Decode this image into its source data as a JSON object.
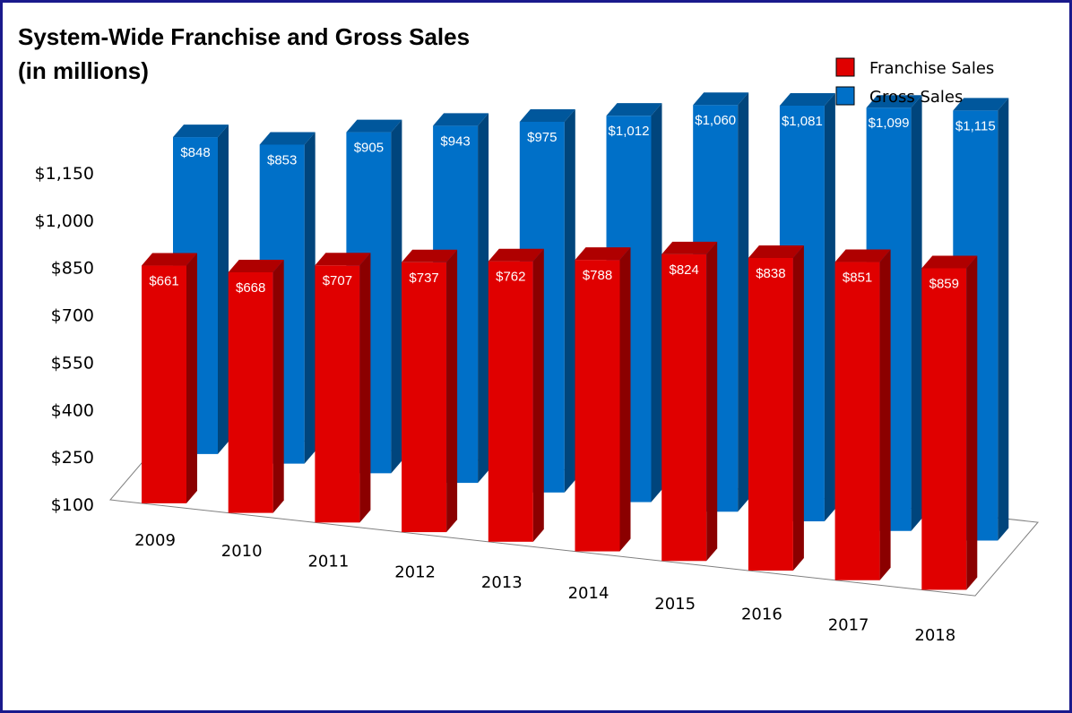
{
  "chart_data": {
    "type": "bar",
    "title_line1": "System-Wide Franchise and Gross Sales",
    "title_line2": "(in millions)",
    "categories": [
      "2009",
      "2010",
      "2011",
      "2012",
      "2013",
      "2014",
      "2015",
      "2016",
      "2017",
      "2018"
    ],
    "series": [
      {
        "name": "Franchise Sales",
        "color": "#e00000",
        "values": [
          661,
          668,
          707,
          737,
          762,
          788,
          824,
          838,
          851,
          859
        ],
        "labels": [
          "$661",
          "$668",
          "$707",
          "$737",
          "$762",
          "$788",
          "$824",
          "$838",
          "$851",
          "$859"
        ]
      },
      {
        "name": "Gross Sales",
        "color": "#0070c8",
        "values": [
          848,
          853,
          905,
          943,
          975,
          1012,
          1060,
          1081,
          1099,
          1115
        ],
        "labels": [
          "$848",
          "$853",
          "$905",
          "$943",
          "$975",
          "$1,012",
          "$1,060",
          "$1,081",
          "$1,099",
          "$1,115"
        ]
      }
    ],
    "y_ticks": [
      "$100",
      "$250",
      "$400",
      "$550",
      "$700",
      "$850",
      "$1,000",
      "$1,150"
    ],
    "ylim": [
      100,
      1150
    ],
    "legend_position": "top-right",
    "grid": false
  }
}
